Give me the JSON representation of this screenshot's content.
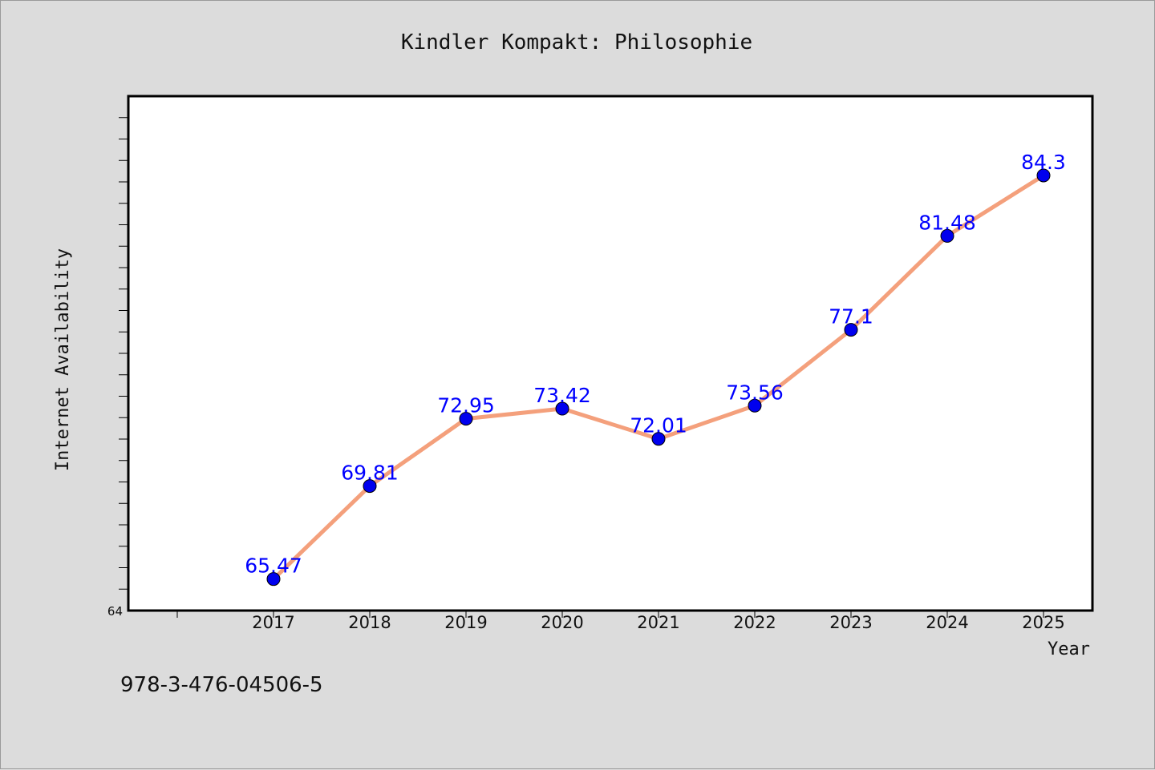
{
  "chart_data": {
    "type": "line",
    "title": "Kindler Kompakt: Philosophie",
    "xlabel": "Year",
    "ylabel": "Internet Availability",
    "x": [
      "2017",
      "2018",
      "2019",
      "2020",
      "2021",
      "2022",
      "2023",
      "2024",
      "2025"
    ],
    "series": [
      {
        "values": [
          65.47,
          69.81,
          72.95,
          73.42,
          72.01,
          73.56,
          77.1,
          81.48,
          84.3
        ],
        "data_labels": [
          "65.47",
          "69.81",
          "72.95",
          "73.42",
          "72.01",
          "73.56",
          "77.1",
          "81.48",
          "84.3"
        ],
        "line_color": "#f4a07c",
        "marker_color": "#0000ee"
      }
    ],
    "ylim": [
      64,
      88
    ],
    "yticks_labeled": [
      "64"
    ],
    "grid": false,
    "legend": "none"
  },
  "footer": {
    "isbn": "978-3-476-04506-5"
  },
  "colors": {
    "background": "#dcdcdc",
    "plot_background": "#ffffff",
    "data_label": "#0000ff"
  }
}
